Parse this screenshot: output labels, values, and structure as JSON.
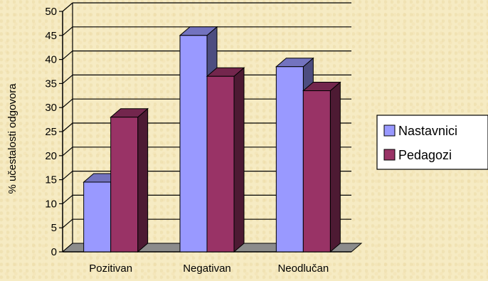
{
  "chart_data": {
    "type": "bar",
    "ylabel": "% učestalosti odgovora",
    "xlabel": "",
    "categories": [
      "Pozitivan",
      "Negativan",
      "Neodlučan"
    ],
    "ylim": [
      0,
      50
    ],
    "yticks": [
      0,
      5,
      10,
      15,
      20,
      25,
      30,
      35,
      40,
      45,
      50
    ],
    "grid": true,
    "legend_position": "right",
    "series": [
      {
        "name": "Nastavnici",
        "values": [
          14.5,
          45,
          38.5
        ],
        "color": "#9999ff"
      },
      {
        "name": "Pedagozi",
        "values": [
          28,
          36.5,
          33.5
        ],
        "color": "#993366"
      }
    ]
  }
}
